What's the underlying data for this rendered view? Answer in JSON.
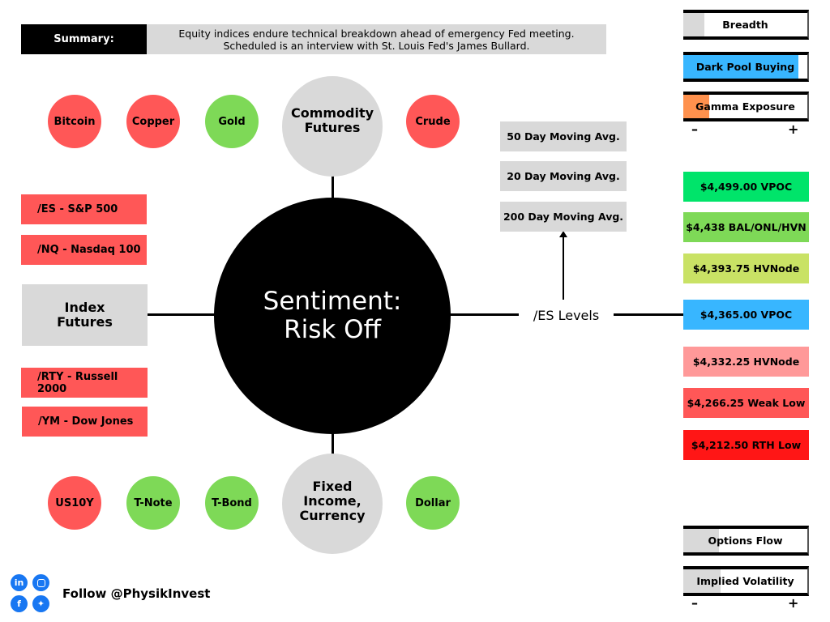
{
  "summary": {
    "label": "Summary:",
    "text_line1": "Equity indices endure technical breakdown ahead of emergency Fed meeting.",
    "text_line2": "Scheduled is an interview with St. Louis Fed's James Bullard."
  },
  "center": {
    "line1": "Sentiment:",
    "line2": "Risk Off"
  },
  "commodities": {
    "hub_line1": "Commodity",
    "hub_line2": "Futures",
    "items": [
      {
        "label": "Bitcoin",
        "status": "red"
      },
      {
        "label": "Copper",
        "status": "red"
      },
      {
        "label": "Gold",
        "status": "green"
      },
      {
        "label": "Crude",
        "status": "red"
      }
    ]
  },
  "fixed_income": {
    "hub_line1": "Fixed",
    "hub_line2": "Income,",
    "hub_line3": "Currency",
    "items": [
      {
        "label": "US10Y",
        "status": "red"
      },
      {
        "label": "T-Note",
        "status": "green"
      },
      {
        "label": "T-Bond",
        "status": "green"
      },
      {
        "label": "Dollar",
        "status": "green"
      }
    ]
  },
  "index_futures": {
    "hub_line1": "Index",
    "hub_line2": "Futures",
    "items": [
      {
        "label": "/ES - S&P 500",
        "status": "red"
      },
      {
        "label": "/NQ - Nasdaq 100",
        "status": "red"
      },
      {
        "label": "/RTY - Russell 2000",
        "status": "red"
      },
      {
        "label": "/YM - Dow Jones",
        "status": "red"
      }
    ]
  },
  "es_levels": {
    "label": "/ES Levels",
    "moving_averages": [
      "50 Day Moving Avg.",
      "20 Day Moving Avg.",
      "200 Day Moving Avg."
    ],
    "levels": [
      {
        "label": "$4,499.00 VPOC",
        "color": "#00e46a"
      },
      {
        "label": "$4,438 BAL/ONL/HVN",
        "color": "#7ed957"
      },
      {
        "label": "$4,393.75 HVNode",
        "color": "#c9e265"
      },
      {
        "label": "$4,365.00 VPOC",
        "color": "#38b6ff"
      },
      {
        "label": "$4,332.25 HVNode",
        "color": "#ff9999"
      },
      {
        "label": "$4,266.25 Weak Low",
        "color": "#ff5757"
      },
      {
        "label": "$4,212.50 RTH Low",
        "color": "#ff1616"
      }
    ]
  },
  "meters_top": [
    {
      "label": "Breadth",
      "fill": 0.17,
      "color": "#d9d9d9"
    },
    {
      "label": "Dark Pool Buying",
      "fill": 0.93,
      "color": "#38b6ff"
    },
    {
      "label": "Gamma Exposure",
      "fill": 0.21,
      "color": "#ff914d"
    }
  ],
  "meters_bottom": [
    {
      "label": "Options Flow",
      "fill": 0.29,
      "color": "#d9d9d9"
    },
    {
      "label": "Implied Volatility",
      "fill": 0.3,
      "color": "#d9d9d9"
    }
  ],
  "scale": {
    "minus": "–",
    "plus": "+"
  },
  "social": {
    "follow": "Follow @PhysikInvest",
    "icons": [
      "linkedin-icon",
      "instagram-icon",
      "facebook-icon",
      "twitter-icon"
    ]
  }
}
